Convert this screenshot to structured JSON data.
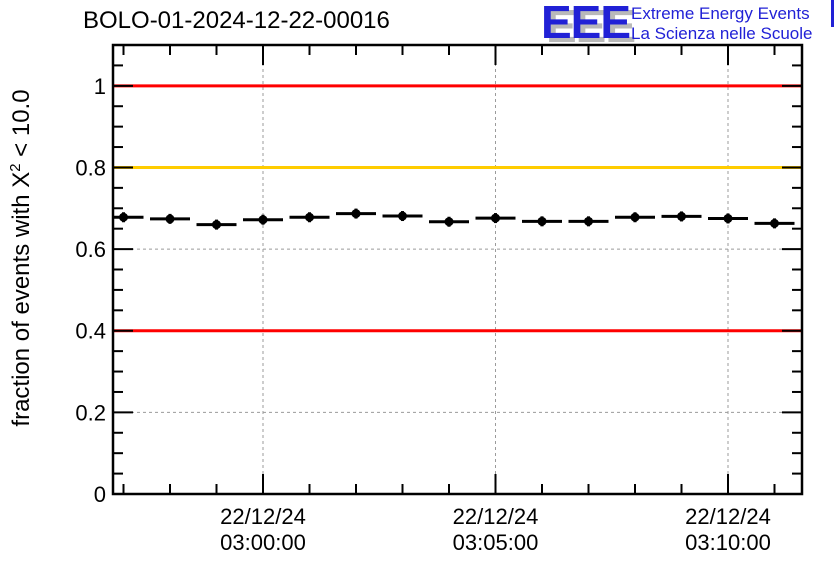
{
  "header": {
    "title": "BOLO-01-2024-12-22-00016",
    "logo": {
      "acronym": "EEE",
      "line1": "Extreme Energy Events",
      "line2": "La Scienza nelle Scuole",
      "text_color": "#2121d6",
      "shadow_color": "#b9b9b9"
    }
  },
  "chart_data": {
    "type": "scatter",
    "title": "BOLO-01-2024-12-22-00016",
    "ylabel": "fraction of events with X^{2} < 10.0",
    "ylabel_prefix": "fraction of events with X",
    "ylabel_sup": "2",
    "ylabel_suffix": " < 10.0",
    "xlabel": "",
    "ylim": [
      0,
      1.1
    ],
    "grid": true,
    "grid_color": "#9b9b9b",
    "axis_color": "#000000",
    "date": "22/12/24",
    "y_ticks": [
      {
        "value": 0,
        "label": "0"
      },
      {
        "value": 0.2,
        "label": "0.2"
      },
      {
        "value": 0.4,
        "label": "0.4"
      },
      {
        "value": 0.6,
        "label": "0.6"
      },
      {
        "value": 0.8,
        "label": "0.8"
      },
      {
        "value": 1,
        "label": "1"
      }
    ],
    "y_minor_step": 0.05,
    "x_ticks": [
      {
        "time": "03:00:00",
        "label_date": "22/12/24",
        "label_time": "03:00:00"
      },
      {
        "time": "03:05:00",
        "label_date": "22/12/24",
        "label_time": "03:05:00"
      },
      {
        "time": "03:10:00",
        "label_date": "22/12/24",
        "label_time": "03:10:00"
      }
    ],
    "x_minor_step_seconds": 60,
    "xlim_time": [
      "02:56:47",
      "03:11:35"
    ],
    "bin_width_seconds": 60,
    "marker": {
      "shape": "filled-circle",
      "color": "#000000"
    },
    "reference_lines": [
      {
        "value": 1.0,
        "color": "#ff0000"
      },
      {
        "value": 0.8,
        "color": "#ffcc00"
      },
      {
        "value": 0.4,
        "color": "#ff0000"
      }
    ],
    "series": [
      {
        "name": "fraction of events with X2 < 10.0",
        "points": [
          {
            "time": "02:57:00",
            "value": 0.678
          },
          {
            "time": "02:58:00",
            "value": 0.674
          },
          {
            "time": "02:59:00",
            "value": 0.66
          },
          {
            "time": "03:00:00",
            "value": 0.672
          },
          {
            "time": "03:01:00",
            "value": 0.678
          },
          {
            "time": "03:02:00",
            "value": 0.687
          },
          {
            "time": "03:03:00",
            "value": 0.681
          },
          {
            "time": "03:04:00",
            "value": 0.667
          },
          {
            "time": "03:05:00",
            "value": 0.676
          },
          {
            "time": "03:06:00",
            "value": 0.668
          },
          {
            "time": "03:07:00",
            "value": 0.668
          },
          {
            "time": "03:08:00",
            "value": 0.678
          },
          {
            "time": "03:09:00",
            "value": 0.68
          },
          {
            "time": "03:10:00",
            "value": 0.675
          },
          {
            "time": "03:11:00",
            "value": 0.663
          }
        ]
      }
    ]
  }
}
